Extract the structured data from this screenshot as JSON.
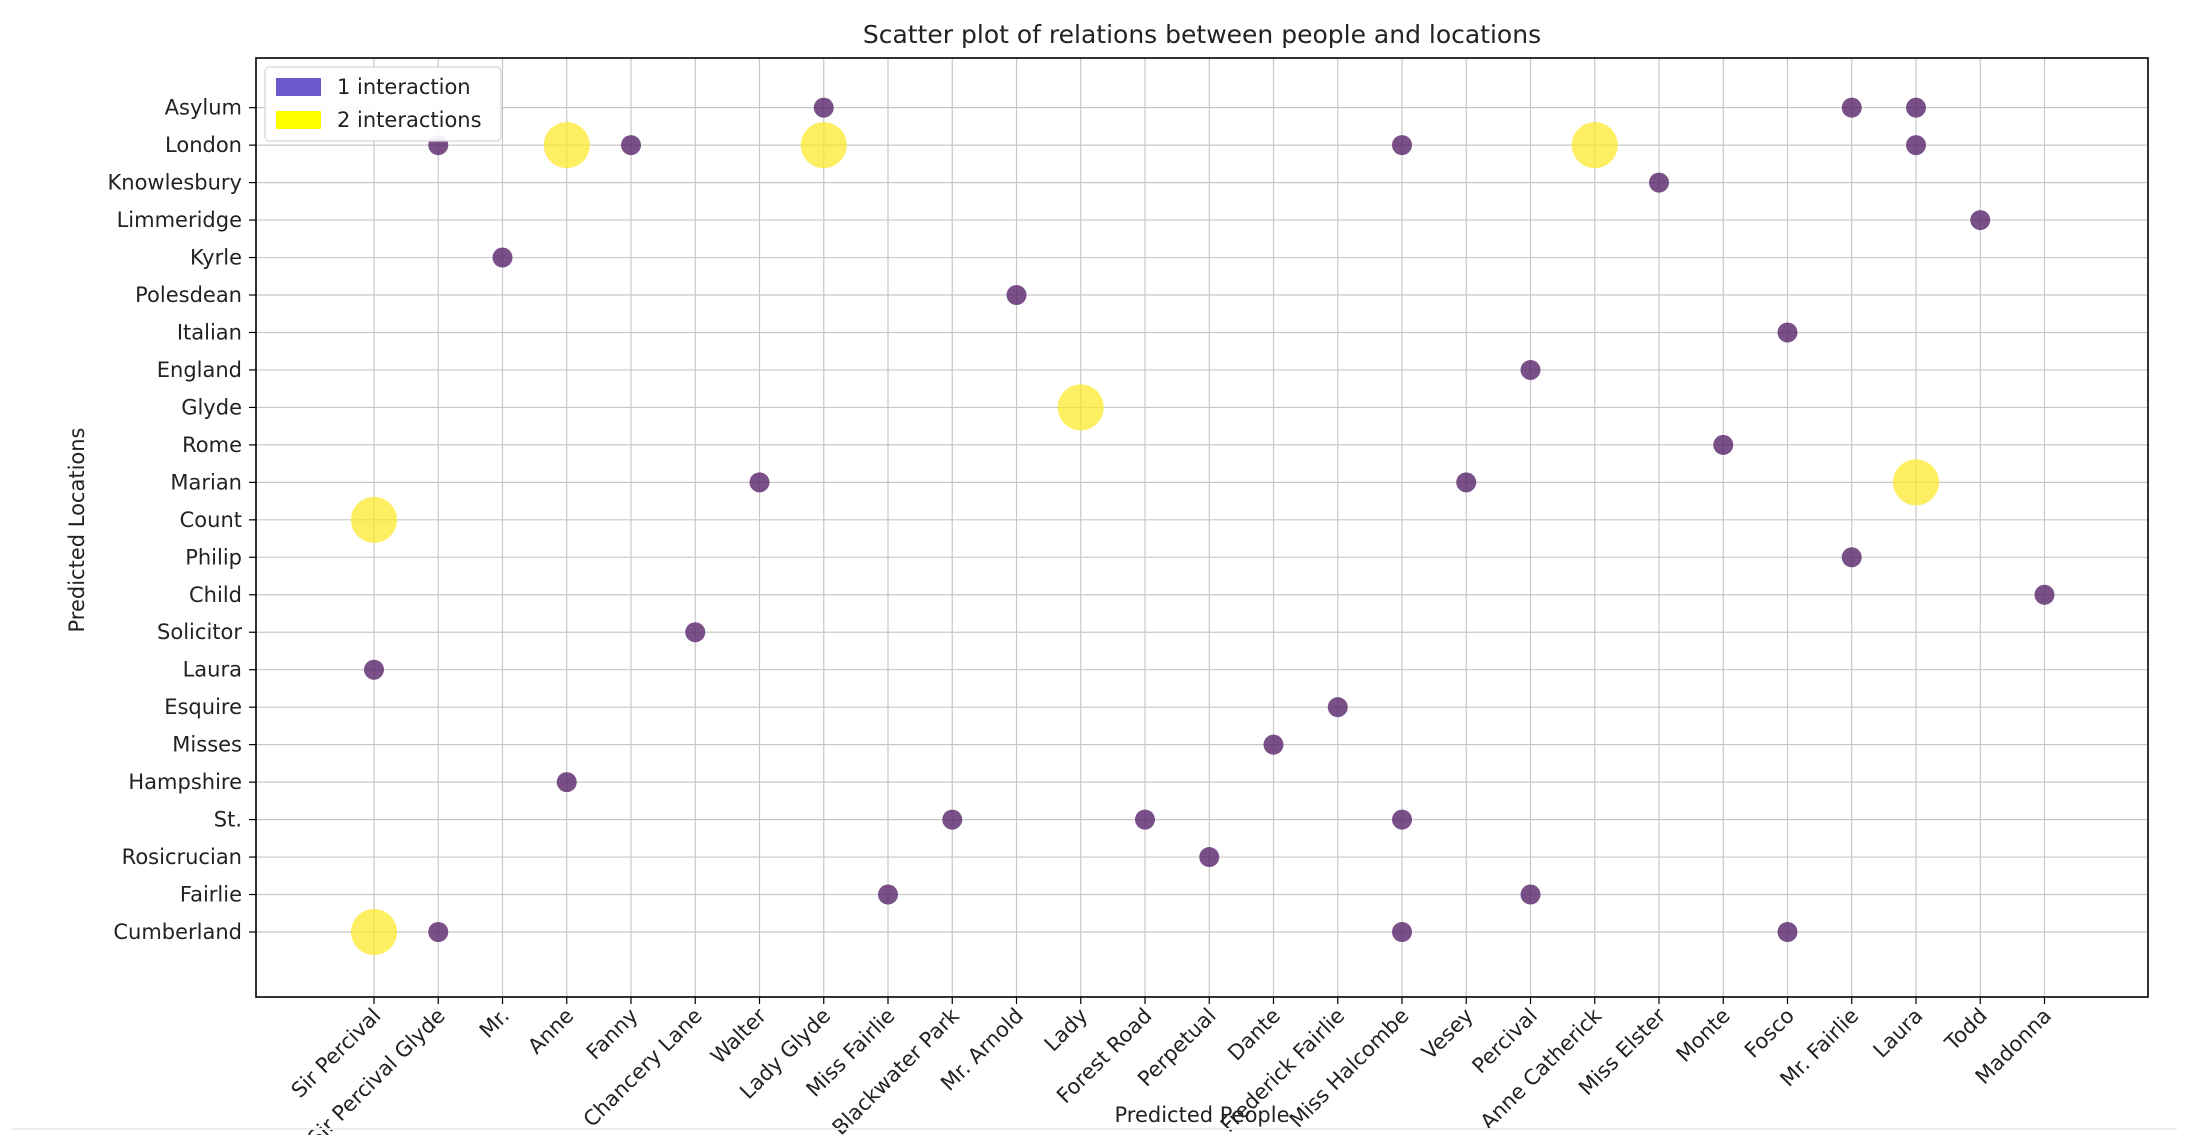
{
  "chart_data": {
    "type": "scatter",
    "title": "Scatter plot of relations between people and locations",
    "xlabel": "Predicted People",
    "ylabel": "Predicted Locations",
    "grid": true,
    "legend_position": "top-left",
    "x_categories": [
      "Sir Percival",
      "Sir Percival Glyde",
      "Mr.",
      "Anne",
      "Fanny",
      "Chancery Lane",
      "Walter",
      "Lady Glyde",
      "Miss Fairlie",
      "Blackwater Park",
      "Mr. Arnold",
      "Lady",
      "Forest Road",
      "Perpetual",
      "Dante",
      "Frederick Fairlie",
      "Miss Halcombe",
      "Vesey",
      "Percival",
      "Anne Catherick",
      "Miss Elster",
      "Monte",
      "Fosco",
      "Mr. Fairlie",
      "Laura",
      "Todd",
      "Madonna"
    ],
    "y_categories": [
      "Cumberland",
      "Fairlie",
      "Rosicrucian",
      "St.",
      "Hampshire",
      "Misses",
      "Esquire",
      "Laura",
      "Solicitor",
      "Child",
      "Philip",
      "Count",
      "Marian",
      "Rome",
      "Glyde",
      "England",
      "Italian",
      "Polesdean",
      "Kyrle",
      "Limmeridge",
      "Knowlesbury",
      "London",
      "Asylum"
    ],
    "legend": [
      {
        "label": "1 interaction",
        "color": "#6a5acd"
      },
      {
        "label": "2 interactions",
        "color": "#ffff00"
      }
    ],
    "colors": {
      "one": "#5b2a6e",
      "two": "#fde725"
    },
    "points": [
      {
        "person": "Sir Percival",
        "location": "Cumberland",
        "interactions": 2
      },
      {
        "person": "Sir Percival",
        "location": "Count",
        "interactions": 2
      },
      {
        "person": "Sir Percival",
        "location": "Laura",
        "interactions": 1
      },
      {
        "person": "Sir Percival Glyde",
        "location": "London",
        "interactions": 1
      },
      {
        "person": "Sir Percival Glyde",
        "location": "Cumberland",
        "interactions": 1
      },
      {
        "person": "Mr.",
        "location": "Kyrle",
        "interactions": 1
      },
      {
        "person": "Anne",
        "location": "London",
        "interactions": 2
      },
      {
        "person": "Anne",
        "location": "Hampshire",
        "interactions": 1
      },
      {
        "person": "Fanny",
        "location": "London",
        "interactions": 1
      },
      {
        "person": "Chancery Lane",
        "location": "Solicitor",
        "interactions": 1
      },
      {
        "person": "Walter",
        "location": "Marian",
        "interactions": 1
      },
      {
        "person": "Lady Glyde",
        "location": "Asylum",
        "interactions": 1
      },
      {
        "person": "Lady Glyde",
        "location": "London",
        "interactions": 2
      },
      {
        "person": "Miss Fairlie",
        "location": "Fairlie",
        "interactions": 1
      },
      {
        "person": "Blackwater Park",
        "location": "St.",
        "interactions": 1
      },
      {
        "person": "Mr. Arnold",
        "location": "Polesdean",
        "interactions": 1
      },
      {
        "person": "Lady",
        "location": "Glyde",
        "interactions": 2
      },
      {
        "person": "Forest Road",
        "location": "St.",
        "interactions": 1
      },
      {
        "person": "Perpetual",
        "location": "Rosicrucian",
        "interactions": 1
      },
      {
        "person": "Dante",
        "location": "Misses",
        "interactions": 1
      },
      {
        "person": "Frederick Fairlie",
        "location": "Esquire",
        "interactions": 1
      },
      {
        "person": "Miss Halcombe",
        "location": "London",
        "interactions": 1
      },
      {
        "person": "Miss Halcombe",
        "location": "St.",
        "interactions": 1
      },
      {
        "person": "Miss Halcombe",
        "location": "Cumberland",
        "interactions": 1
      },
      {
        "person": "Vesey",
        "location": "Marian",
        "interactions": 1
      },
      {
        "person": "Percival",
        "location": "England",
        "interactions": 1
      },
      {
        "person": "Percival",
        "location": "Fairlie",
        "interactions": 1
      },
      {
        "person": "Anne Catherick",
        "location": "London",
        "interactions": 2
      },
      {
        "person": "Miss Elster",
        "location": "Knowlesbury",
        "interactions": 1
      },
      {
        "person": "Monte",
        "location": "Rome",
        "interactions": 1
      },
      {
        "person": "Fosco",
        "location": "Italian",
        "interactions": 1
      },
      {
        "person": "Fosco",
        "location": "Cumberland",
        "interactions": 1
      },
      {
        "person": "Mr. Fairlie",
        "location": "Asylum",
        "interactions": 1
      },
      {
        "person": "Mr. Fairlie",
        "location": "Philip",
        "interactions": 1
      },
      {
        "person": "Laura",
        "location": "Asylum",
        "interactions": 1
      },
      {
        "person": "Laura",
        "location": "London",
        "interactions": 1
      },
      {
        "person": "Laura",
        "location": "Marian",
        "interactions": 2
      },
      {
        "person": "Todd",
        "location": "Limmeridge",
        "interactions": 1
      },
      {
        "person": "Madonna",
        "location": "Child",
        "interactions": 1
      }
    ]
  }
}
